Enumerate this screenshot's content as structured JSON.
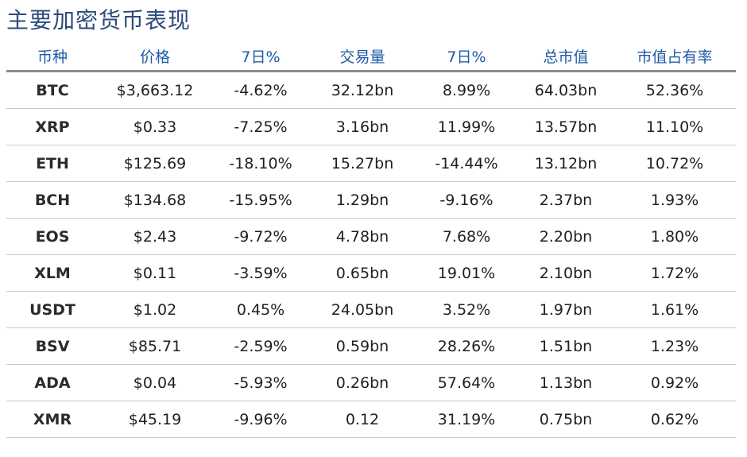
{
  "title": "主要加密货币表现",
  "table": {
    "headers": [
      "币种",
      "价格",
      "7日%",
      "交易量",
      "7日%",
      "总市值",
      "市值占有率"
    ],
    "rows": [
      [
        "BTC",
        "$3,663.12",
        "-4.62%",
        "32.12bn",
        "8.99%",
        "64.03bn",
        "52.36%"
      ],
      [
        "XRP",
        "$0.33",
        "-7.25%",
        "3.16bn",
        "11.99%",
        "13.57bn",
        "11.10%"
      ],
      [
        "ETH",
        "$125.69",
        "-18.10%",
        "15.27bn",
        "-14.44%",
        "13.12bn",
        "10.72%"
      ],
      [
        "BCH",
        "$134.68",
        "-15.95%",
        "1.29bn",
        "-9.16%",
        "2.37bn",
        "1.93%"
      ],
      [
        "EOS",
        "$2.43",
        "-9.72%",
        "4.78bn",
        "7.68%",
        "2.20bn",
        "1.80%"
      ],
      [
        "XLM",
        "$0.11",
        "-3.59%",
        "0.65bn",
        "19.01%",
        "2.10bn",
        "1.72%"
      ],
      [
        "USDT",
        "$1.02",
        "0.45%",
        "24.05bn",
        "3.52%",
        "1.97bn",
        "1.61%"
      ],
      [
        "BSV",
        "$85.71",
        "-2.59%",
        "0.59bn",
        "28.26%",
        "1.51bn",
        "1.23%"
      ],
      [
        "ADA",
        "$0.04",
        "-5.93%",
        "0.26bn",
        "57.64%",
        "1.13bn",
        "0.92%"
      ],
      [
        "XMR",
        "$45.19",
        "-9.96%",
        "0.12",
        "31.19%",
        "0.75bn",
        "0.62%"
      ]
    ]
  },
  "colors": {
    "title": "#2d4a7a",
    "header_text": "#1f5aa6",
    "header_rule": "#8c8c8c",
    "row_rule": "#c9c9c9"
  }
}
